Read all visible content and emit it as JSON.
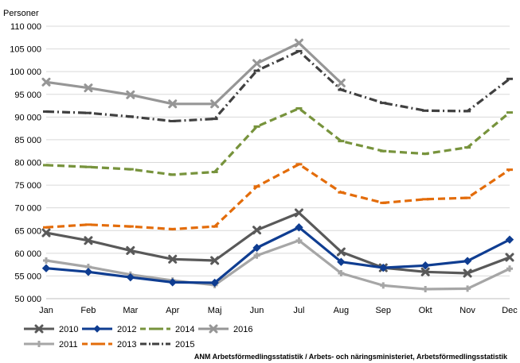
{
  "chart_data": {
    "type": "line",
    "ylabel": "Personer",
    "ylim": [
      50000,
      110000
    ],
    "yticks": [
      50000,
      55000,
      60000,
      65000,
      70000,
      75000,
      80000,
      85000,
      90000,
      95000,
      100000,
      105000,
      110000
    ],
    "ytick_labels": [
      "50 000",
      "55 000",
      "60 000",
      "65 000",
      "70 000",
      "75 000",
      "80 000",
      "85 000",
      "90 000",
      "95 000",
      "100 000",
      "105 000",
      "110 000"
    ],
    "categories": [
      "Jan",
      "Feb",
      "Mar",
      "Apr",
      "Maj",
      "Jun",
      "Jul",
      "Aug",
      "Sep",
      "Okt",
      "Nov",
      "Dec"
    ],
    "grid": true,
    "legend_position": "bottom-left",
    "series": [
      {
        "name": "2010",
        "color": "#595959",
        "style": "solid",
        "marker": "x",
        "values": [
          64500,
          62800,
          60600,
          58700,
          58400,
          65100,
          68900,
          60300,
          56800,
          55900,
          55600,
          59100
        ]
      },
      {
        "name": "2011",
        "color": "#a6a6a6",
        "style": "solid",
        "marker": "plus",
        "values": [
          58400,
          57000,
          55300,
          54000,
          53000,
          59500,
          62800,
          55600,
          52900,
          52100,
          52200,
          56600
        ]
      },
      {
        "name": "2012",
        "color": "#0f3d91",
        "style": "solid",
        "marker": "diamond",
        "values": [
          56700,
          55900,
          54700,
          53600,
          53500,
          61200,
          65700,
          58100,
          56800,
          57300,
          58300,
          63000
        ]
      },
      {
        "name": "2013",
        "color": "#e36c0a",
        "style": "dash",
        "marker": "dash",
        "values": [
          65700,
          66300,
          65900,
          65300,
          65900,
          74700,
          79600,
          73400,
          71100,
          71900,
          72200,
          78400
        ]
      },
      {
        "name": "2014",
        "color": "#77933c",
        "style": "dash",
        "marker": "dash",
        "values": [
          79400,
          79000,
          78500,
          77300,
          77900,
          87900,
          91900,
          84700,
          82500,
          81900,
          83300,
          91000
        ]
      },
      {
        "name": "2015",
        "color": "#404040",
        "style": "dashdot",
        "marker": "dash",
        "values": [
          91200,
          90900,
          90100,
          89100,
          89600,
          100200,
          104500,
          96000,
          93100,
          91400,
          91300,
          98400
        ]
      },
      {
        "name": "2016",
        "color": "#969696",
        "style": "solid",
        "marker": "x",
        "values": [
          97700,
          96400,
          94900,
          92900,
          92900,
          101800,
          106300,
          97500,
          null,
          null,
          null,
          null
        ]
      }
    ],
    "legend_order": [
      "2010",
      "2012",
      "2014",
      "2016",
      "2011",
      "2013",
      "2015"
    ],
    "source": "ANM Arbetsförmedlingsstatistik / Arbets- och näringsministeriet, Arbetsförmedlingsstatistik"
  }
}
